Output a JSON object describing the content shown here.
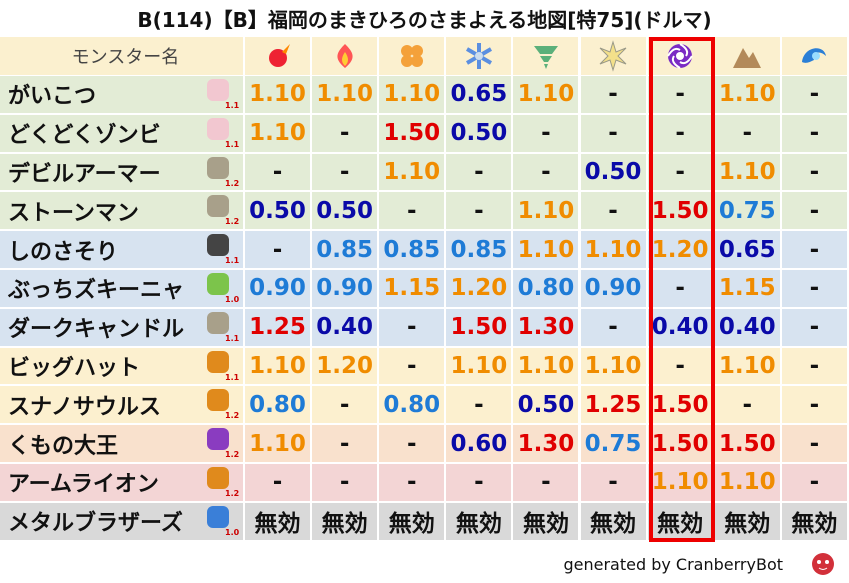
{
  "title": "B(114)【B】福岡のまきひろのさまよえる地図[特75](ドルマ)",
  "table": {
    "header": "モンスター名",
    "rows": [
      {
        "name": "がいこつ",
        "rank": "1.1",
        "cells": [
          "1.10",
          "1.10",
          "1.10",
          "0.65",
          "1.10",
          "-",
          "-",
          "1.10",
          "-"
        ]
      },
      {
        "name": "どくどくゾンビ",
        "rank": "1.1",
        "cells": [
          "1.10",
          "-",
          "1.50",
          "0.50",
          "-",
          "-",
          "-",
          "-",
          "-"
        ]
      },
      {
        "name": "デビルアーマー",
        "rank": "1.2",
        "cells": [
          "-",
          "-",
          "1.10",
          "-",
          "-",
          "0.50",
          "-",
          "1.10",
          "-"
        ]
      },
      {
        "name": "ストーンマン",
        "rank": "1.2",
        "cells": [
          "0.50",
          "0.50",
          "-",
          "-",
          "1.10",
          "-",
          "1.50",
          "0.75",
          "-"
        ]
      },
      {
        "name": "しのさそり",
        "rank": "1.1",
        "cells": [
          "-",
          "0.85",
          "0.85",
          "0.85",
          "1.10",
          "1.10",
          "1.20",
          "0.65",
          "-"
        ]
      },
      {
        "name": "ぶっちズキーニャ",
        "rank": "1.0",
        "cells": [
          "0.90",
          "0.90",
          "1.15",
          "1.20",
          "0.80",
          "0.90",
          "-",
          "1.15",
          "-"
        ]
      },
      {
        "name": "ダークキャンドル",
        "rank": "1.1",
        "cells": [
          "1.25",
          "0.40",
          "-",
          "1.50",
          "1.30",
          "-",
          "0.40",
          "0.40",
          "-"
        ]
      },
      {
        "name": "ビッグハット",
        "rank": "1.1",
        "cells": [
          "1.10",
          "1.20",
          "-",
          "1.10",
          "1.10",
          "1.10",
          "-",
          "1.10",
          "-"
        ]
      },
      {
        "name": "スナノサウルス",
        "rank": "1.2",
        "cells": [
          "0.80",
          "-",
          "0.80",
          "-",
          "0.50",
          "1.25",
          "1.50",
          "-",
          "-"
        ]
      },
      {
        "name": "くもの大王",
        "rank": "1.2",
        "cells": [
          "1.10",
          "-",
          "-",
          "0.60",
          "1.30",
          "0.75",
          "1.50",
          "1.50",
          "-"
        ]
      },
      {
        "name": "アームライオン",
        "rank": "1.2",
        "cells": [
          "-",
          "-",
          "-",
          "-",
          "-",
          "-",
          "1.10",
          "1.10",
          "-"
        ]
      },
      {
        "name": "メタルブラザーズ",
        "rank": "1.0",
        "cells": [
          "無効",
          "無効",
          "無効",
          "無効",
          "無効",
          "無効",
          "無効",
          "無効",
          "無効"
        ]
      }
    ]
  },
  "footer": "generated by CranberryBot"
}
